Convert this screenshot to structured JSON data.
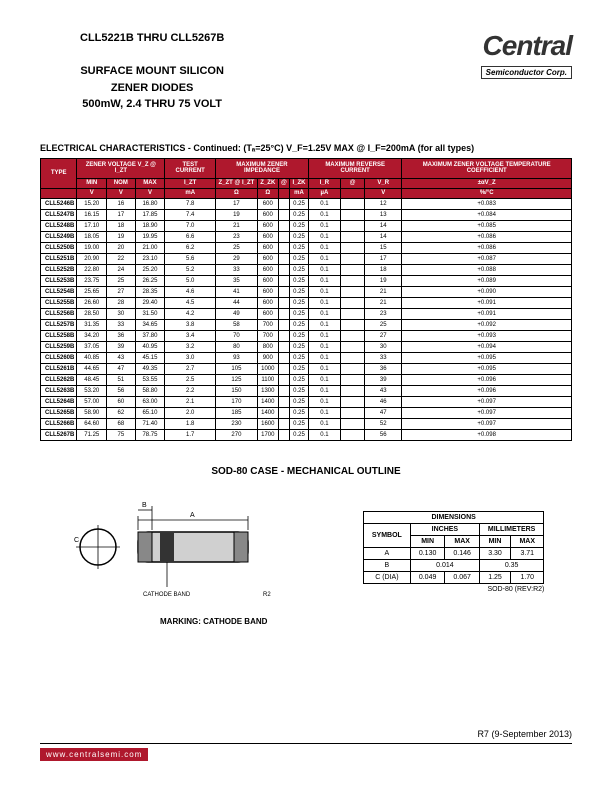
{
  "header": {
    "title_line1": "CLL5221B THRU CLL5267B",
    "title_line2": "SURFACE MOUNT SILICON",
    "title_line3": "ZENER DIODES",
    "title_line4": "500mW, 2.4 THRU 75 VOLT",
    "logo_main": "Central",
    "logo_sub": "Semiconductor Corp."
  },
  "elec": {
    "title": "ELECTRICAL CHARACTERISTICS - Continued: (Tₐ=25°C) V_F=1.25V MAX @ I_F=200mA (for all types)",
    "headers_top": [
      "TYPE",
      "ZENER VOLTAGE\nV_Z @ I_ZT",
      "TEST CURRENT",
      "MAXIMUM ZENER IMPEDANCE",
      "MAXIMUM REVERSE CURRENT",
      "MAXIMUM ZENER VOLTAGE TEMPERATURE COEFFICIENT"
    ],
    "headers_sub": [
      "MIN",
      "NOM",
      "MAX",
      "I_ZT",
      "Z_ZT @ I_ZT",
      "Z_ZK",
      "@",
      "I_ZK",
      "I_R",
      "@",
      "V_R",
      "±αV_Z"
    ],
    "units": [
      "V",
      "V",
      "V",
      "mA",
      "Ω",
      "Ω",
      "",
      "mA",
      "µA",
      "",
      "V",
      "%/°C"
    ],
    "rows": [
      [
        "CLL5246B",
        "15.20",
        "16",
        "16.80",
        "7.8",
        "17",
        "600",
        "",
        "0.25",
        "0.1",
        "",
        "12",
        "+0.083"
      ],
      [
        "CLL5247B",
        "16.15",
        "17",
        "17.85",
        "7.4",
        "19",
        "600",
        "",
        "0.25",
        "0.1",
        "",
        "13",
        "+0.084"
      ],
      [
        "CLL5248B",
        "17.10",
        "18",
        "18.90",
        "7.0",
        "21",
        "600",
        "",
        "0.25",
        "0.1",
        "",
        "14",
        "+0.085"
      ],
      [
        "CLL5249B",
        "18.05",
        "19",
        "19.95",
        "6.6",
        "23",
        "600",
        "",
        "0.25",
        "0.1",
        "",
        "14",
        "+0.086"
      ],
      [
        "CLL5250B",
        "19.00",
        "20",
        "21.00",
        "6.2",
        "25",
        "600",
        "",
        "0.25",
        "0.1",
        "",
        "15",
        "+0.086"
      ],
      [
        "CLL5251B",
        "20.90",
        "22",
        "23.10",
        "5.6",
        "29",
        "600",
        "",
        "0.25",
        "0.1",
        "",
        "17",
        "+0.087"
      ],
      [
        "CLL5252B",
        "22.80",
        "24",
        "25.20",
        "5.2",
        "33",
        "600",
        "",
        "0.25",
        "0.1",
        "",
        "18",
        "+0.088"
      ],
      [
        "CLL5253B",
        "23.75",
        "25",
        "26.25",
        "5.0",
        "35",
        "600",
        "",
        "0.25",
        "0.1",
        "",
        "19",
        "+0.089"
      ],
      [
        "CLL5254B",
        "25.65",
        "27",
        "28.35",
        "4.6",
        "41",
        "600",
        "",
        "0.25",
        "0.1",
        "",
        "21",
        "+0.090"
      ],
      [
        "CLL5255B",
        "26.60",
        "28",
        "29.40",
        "4.5",
        "44",
        "600",
        "",
        "0.25",
        "0.1",
        "",
        "21",
        "+0.091"
      ],
      [
        "CLL5256B",
        "28.50",
        "30",
        "31.50",
        "4.2",
        "49",
        "600",
        "",
        "0.25",
        "0.1",
        "",
        "23",
        "+0.091"
      ],
      [
        "CLL5257B",
        "31.35",
        "33",
        "34.65",
        "3.8",
        "58",
        "700",
        "",
        "0.25",
        "0.1",
        "",
        "25",
        "+0.092"
      ],
      [
        "CLL5258B",
        "34.20",
        "36",
        "37.80",
        "3.4",
        "70",
        "700",
        "",
        "0.25",
        "0.1",
        "",
        "27",
        "+0.093"
      ],
      [
        "CLL5259B",
        "37.05",
        "39",
        "40.95",
        "3.2",
        "80",
        "800",
        "",
        "0.25",
        "0.1",
        "",
        "30",
        "+0.094"
      ],
      [
        "CLL5260B",
        "40.85",
        "43",
        "45.15",
        "3.0",
        "93",
        "900",
        "",
        "0.25",
        "0.1",
        "",
        "33",
        "+0.095"
      ],
      [
        "CLL5261B",
        "44.65",
        "47",
        "49.35",
        "2.7",
        "105",
        "1000",
        "",
        "0.25",
        "0.1",
        "",
        "36",
        "+0.095"
      ],
      [
        "CLL5262B",
        "48.45",
        "51",
        "53.55",
        "2.5",
        "125",
        "1100",
        "",
        "0.25",
        "0.1",
        "",
        "39",
        "+0.096"
      ],
      [
        "CLL5263B",
        "53.20",
        "56",
        "58.80",
        "2.2",
        "150",
        "1300",
        "",
        "0.25",
        "0.1",
        "",
        "43",
        "+0.096"
      ],
      [
        "CLL5264B",
        "57.00",
        "60",
        "63.00",
        "2.1",
        "170",
        "1400",
        "",
        "0.25",
        "0.1",
        "",
        "46",
        "+0.097"
      ],
      [
        "CLL5265B",
        "58.90",
        "62",
        "65.10",
        "2.0",
        "185",
        "1400",
        "",
        "0.25",
        "0.1",
        "",
        "47",
        "+0.097"
      ],
      [
        "CLL5266B",
        "64.60",
        "68",
        "71.40",
        "1.8",
        "230",
        "1600",
        "",
        "0.25",
        "0.1",
        "",
        "52",
        "+0.097"
      ],
      [
        "CLL5267B",
        "71.25",
        "75",
        "78.75",
        "1.7",
        "270",
        "1700",
        "",
        "0.25",
        "0.1",
        "",
        "56",
        "+0.098"
      ]
    ]
  },
  "sod": {
    "title": "SOD-80 CASE - MECHANICAL OUTLINE",
    "marking": "MARKING: CATHODE BAND",
    "label_cathode": "CATHODE BAND",
    "label_r2": "R2",
    "dims_title": "DIMENSIONS",
    "dims_headers": [
      "SYMBOL",
      "MIN",
      "MAX",
      "MIN",
      "MAX"
    ],
    "dims_unit_headers": [
      "INCHES",
      "MILLIMETERS"
    ],
    "dims_rows": [
      [
        "A",
        "0.130",
        "0.146",
        "3.30",
        "3.71"
      ],
      [
        "B",
        "0.014",
        "",
        "0.35",
        ""
      ],
      [
        "C (DIA)",
        "0.049",
        "0.067",
        "1.25",
        "1.70"
      ]
    ],
    "dims_rev": "SOD-80 (REV:R2)"
  },
  "footer": {
    "rev": "R7 (9-September 2013)",
    "url": "www.centralsemi.com"
  }
}
